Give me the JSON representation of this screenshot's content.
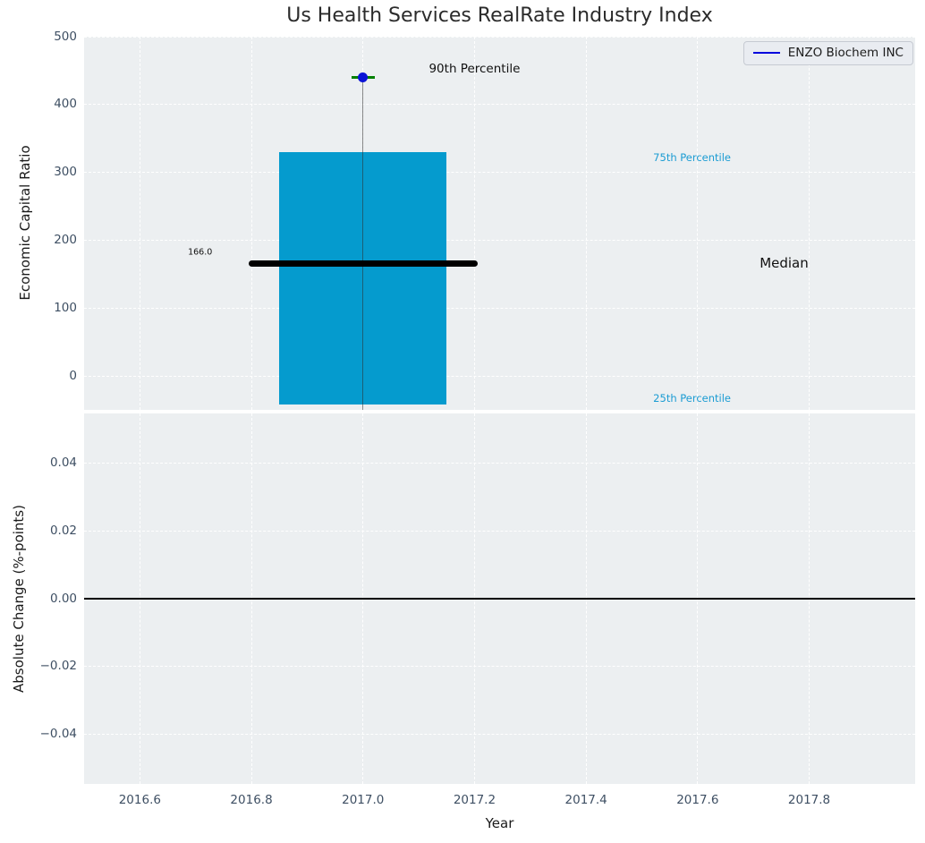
{
  "chart_data": [
    {
      "type": "percentile-box",
      "title": "Us Health Services RealRate Industry Index",
      "ylabel": "Economic Capital Ratio",
      "legend": {
        "label": "ENZO Biochem INC",
        "line_color": "#0000dd",
        "position": "upper right"
      },
      "xlim": [
        2016.5,
        2017.99
      ],
      "ylim": [
        -48.7,
        500
      ],
      "x_ticks": [
        2016.6,
        2016.8,
        2017.0,
        2017.2,
        2017.4,
        2017.6,
        2017.8
      ],
      "x_tick_labels": [
        "2016.6",
        "2016.8",
        "2017.0",
        "2017.2",
        "2017.4",
        "2017.6",
        "2017.8"
      ],
      "y_ticks": [
        0,
        100,
        200,
        300,
        400,
        500
      ],
      "y_tick_labels": [
        "0",
        "100",
        "200",
        "300",
        "400",
        "500"
      ],
      "grid": "white-dashed",
      "year": 2017,
      "percentiles": {
        "p25": -41,
        "median": 166.0,
        "p75": 330,
        "p90": 440
      },
      "bar": {
        "x": 2017,
        "width": 0.3,
        "y_from": -41,
        "y_to": 330,
        "color": "#059bce"
      },
      "median_line": {
        "value": 166.0,
        "x_from": 2016.795,
        "x_to": 2017.205,
        "color": "#000000"
      },
      "p90_marker": {
        "x": 2017,
        "value": 440,
        "half_width": 0.021,
        "color": "#008000"
      },
      "company_point": {
        "name": "ENZO Biochem INC",
        "x": 2017,
        "value": 440,
        "color": "#0b14d6"
      },
      "vline": {
        "x": 2017,
        "y_from": -48.7,
        "y_to": 440,
        "color": "rgba(45,45,45,0.55)"
      },
      "annotations": [
        {
          "text": "90th Percentile",
          "x": 2017.2,
          "y": 453,
          "color": "#111111",
          "size": 13.5
        },
        {
          "text": "75th Percentile",
          "x": 2017.59,
          "y": 322,
          "color": "#1b9cd3",
          "size": 11.5
        },
        {
          "text": "Median",
          "x": 2017.755,
          "y": 167,
          "color": "#111111",
          "size": 15
        },
        {
          "text": "25th Percentile",
          "x": 2017.59,
          "y": -32,
          "color": "#1b9cd3",
          "size": 11.5
        },
        {
          "text": "166.0",
          "x": 2016.708,
          "y": 183,
          "color": "#111111",
          "size": 9.5
        }
      ]
    },
    {
      "type": "line",
      "xlabel": "Year",
      "ylabel": "Absolute Change (%-points)",
      "xlim": [
        2016.5,
        2017.99
      ],
      "ylim": [
        -0.0545,
        0.0545
      ],
      "x_ticks": [
        2016.6,
        2016.8,
        2017.0,
        2017.2,
        2017.4,
        2017.6,
        2017.8
      ],
      "x_tick_labels": [
        "2016.6",
        "2016.8",
        "2017.0",
        "2017.2",
        "2017.4",
        "2017.6",
        "2017.8"
      ],
      "y_ticks": [
        0.04,
        0.02,
        0.0,
        -0.02,
        -0.04
      ],
      "y_tick_labels": [
        "0.04",
        "0.02",
        "0.00",
        "−0.02",
        "−0.04"
      ],
      "grid": "white-dashed",
      "zero_line": {
        "value": 0.0,
        "color": "#000000"
      },
      "series": []
    }
  ],
  "style": {
    "plot_background": "#eceff1",
    "gridline_color": "#ffffff",
    "tick_label_color": "#3e4f63",
    "title_color": "#2b2b2b",
    "legend_background": "#e9ecf1",
    "legend_border": "#c6cad2"
  }
}
